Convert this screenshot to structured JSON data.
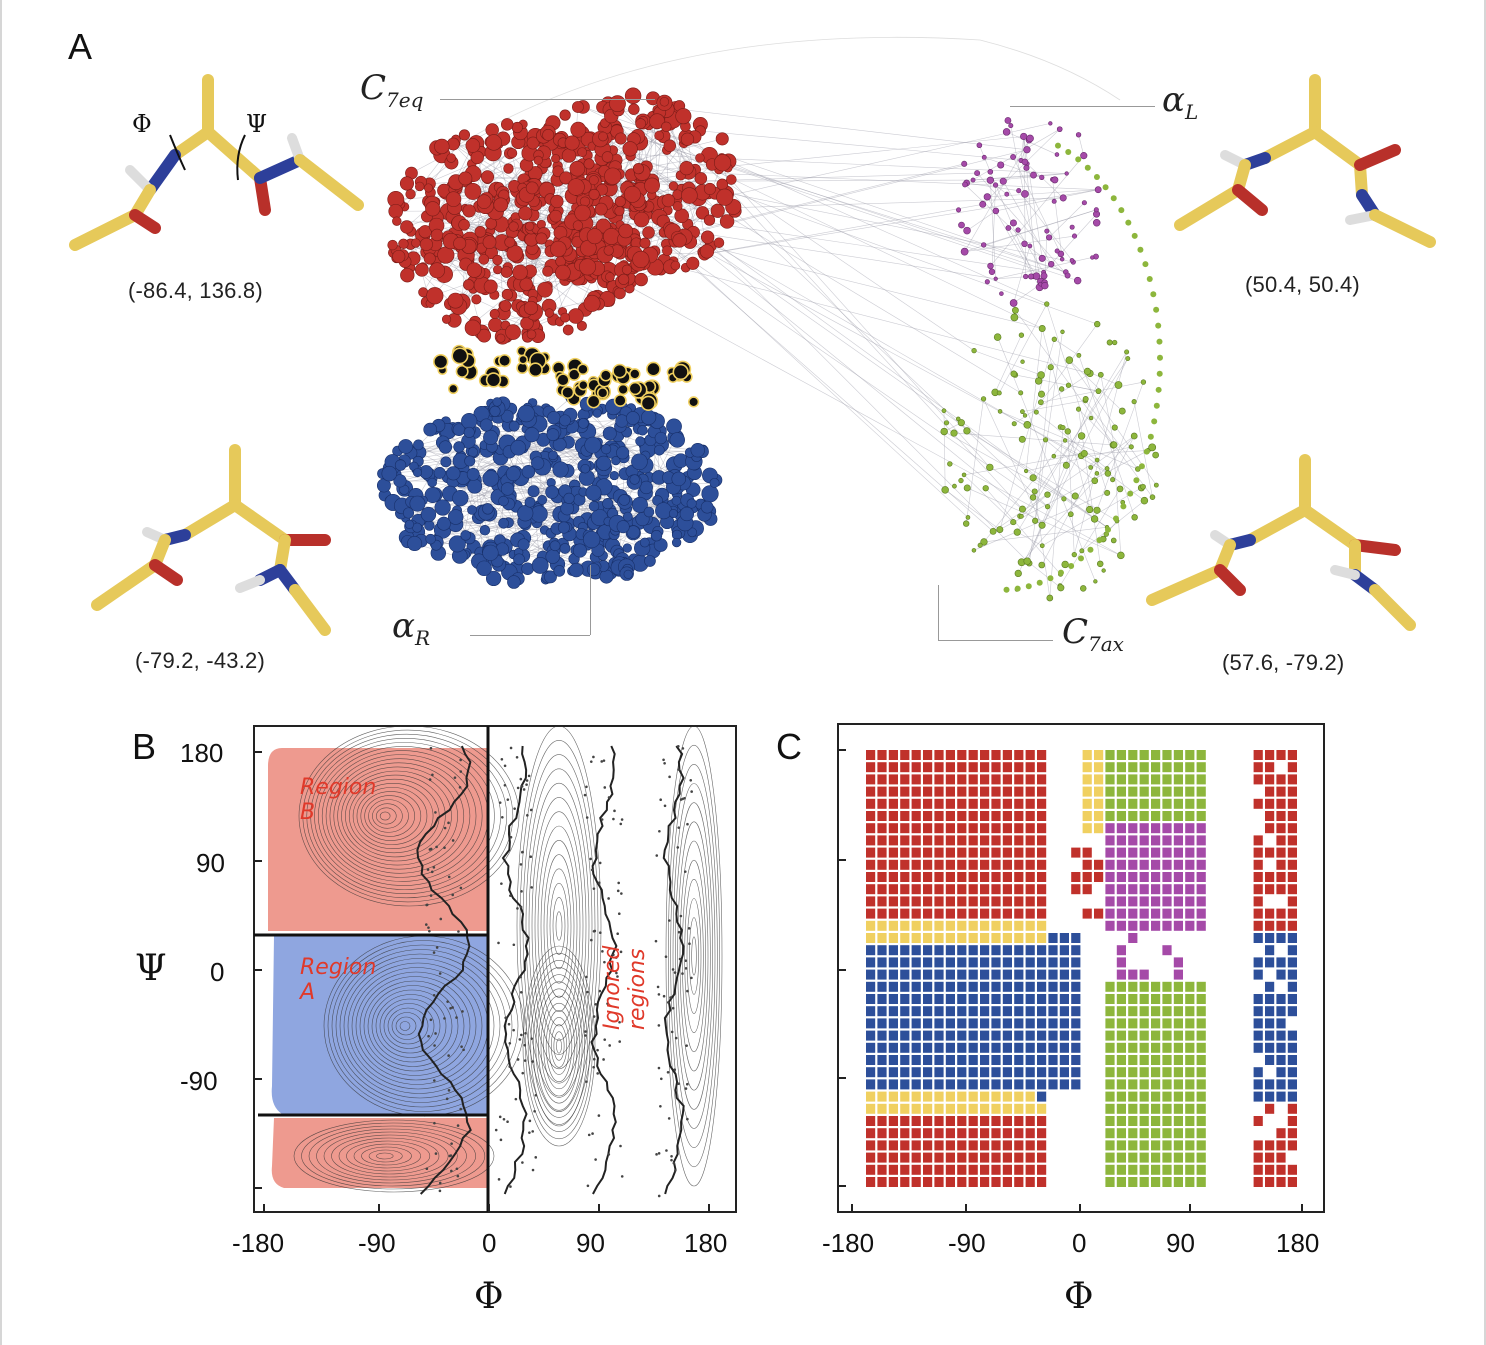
{
  "panels": {
    "a": {
      "letter": "A",
      "conformations": [
        {
          "coords": "(-86.4, 136.8)",
          "label": "C",
          "sub": "7eq"
        },
        {
          "coords": "(50.4, 50.4)",
          "label": "α",
          "sub": "L"
        },
        {
          "coords": "(-79.2, -43.2)",
          "label": "α",
          "sub": "R"
        },
        {
          "coords": "(57.6, -79.2)",
          "label": "C",
          "sub": "7ax"
        }
      ],
      "dihedral_labels": {
        "phi": "Φ",
        "psi": "Ψ"
      },
      "cluster_colors": {
        "c7eq": "#c0312b",
        "alpha_r": "#2d4f9a",
        "alpha_l": "#a54aa8",
        "c7ax": "#8db63c",
        "boundary": "#f0d060"
      }
    },
    "b": {
      "letter": "B",
      "x_ticks": [
        "-180",
        "-90",
        "0",
        "90",
        "180"
      ],
      "y_ticks": [
        "180",
        "90",
        "0",
        "-90"
      ],
      "x_axis": "Φ",
      "y_axis": "Ψ",
      "annotations": {
        "region_b": [
          "Region",
          "B"
        ],
        "region_a": [
          "Region",
          "A"
        ],
        "ignored": [
          "Ignored",
          "regions"
        ]
      },
      "region_colors": {
        "region_b": "#ee9a8f",
        "region_a": "#8fa6e0",
        "handwriting": "#e0392a"
      }
    },
    "c": {
      "letter": "C",
      "x_ticks": [
        "-180",
        "-90",
        "0",
        "90",
        "180"
      ],
      "x_axis": "Φ"
    }
  }
}
